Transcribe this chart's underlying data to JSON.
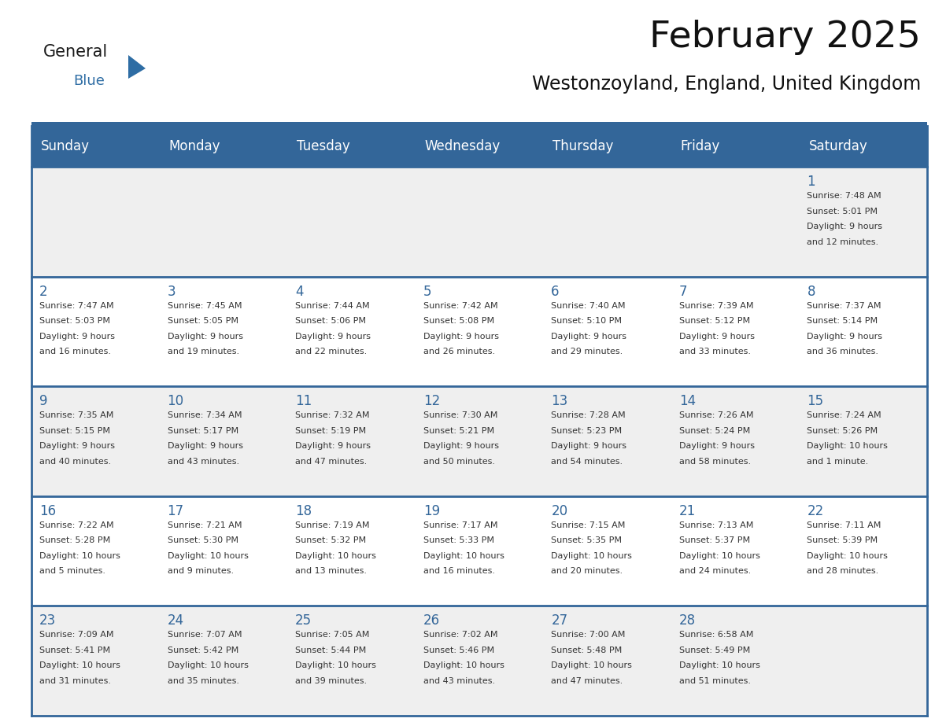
{
  "title": "February 2025",
  "subtitle": "Westonzoyland, England, United Kingdom",
  "days_of_week": [
    "Sunday",
    "Monday",
    "Tuesday",
    "Wednesday",
    "Thursday",
    "Friday",
    "Saturday"
  ],
  "header_bg": "#336699",
  "header_text_color": "#FFFFFF",
  "row_bg_odd": "#EFEFEF",
  "row_bg_even": "#FFFFFF",
  "week_sep_color": "#336699",
  "day_number_color": "#336699",
  "info_text_color": "#333333",
  "title_color": "#111111",
  "subtitle_color": "#111111",
  "logo_general_color": "#1a1a1a",
  "logo_blue_color": "#2E6DA4",
  "calendar": [
    [
      null,
      null,
      null,
      null,
      null,
      null,
      {
        "day": 1,
        "sunrise": "7:48 AM",
        "sunset": "5:01 PM",
        "daylight": "9 hours and 12 minutes."
      }
    ],
    [
      {
        "day": 2,
        "sunrise": "7:47 AM",
        "sunset": "5:03 PM",
        "daylight": "9 hours and 16 minutes."
      },
      {
        "day": 3,
        "sunrise": "7:45 AM",
        "sunset": "5:05 PM",
        "daylight": "9 hours and 19 minutes."
      },
      {
        "day": 4,
        "sunrise": "7:44 AM",
        "sunset": "5:06 PM",
        "daylight": "9 hours and 22 minutes."
      },
      {
        "day": 5,
        "sunrise": "7:42 AM",
        "sunset": "5:08 PM",
        "daylight": "9 hours and 26 minutes."
      },
      {
        "day": 6,
        "sunrise": "7:40 AM",
        "sunset": "5:10 PM",
        "daylight": "9 hours and 29 minutes."
      },
      {
        "day": 7,
        "sunrise": "7:39 AM",
        "sunset": "5:12 PM",
        "daylight": "9 hours and 33 minutes."
      },
      {
        "day": 8,
        "sunrise": "7:37 AM",
        "sunset": "5:14 PM",
        "daylight": "9 hours and 36 minutes."
      }
    ],
    [
      {
        "day": 9,
        "sunrise": "7:35 AM",
        "sunset": "5:15 PM",
        "daylight": "9 hours and 40 minutes."
      },
      {
        "day": 10,
        "sunrise": "7:34 AM",
        "sunset": "5:17 PM",
        "daylight": "9 hours and 43 minutes."
      },
      {
        "day": 11,
        "sunrise": "7:32 AM",
        "sunset": "5:19 PM",
        "daylight": "9 hours and 47 minutes."
      },
      {
        "day": 12,
        "sunrise": "7:30 AM",
        "sunset": "5:21 PM",
        "daylight": "9 hours and 50 minutes."
      },
      {
        "day": 13,
        "sunrise": "7:28 AM",
        "sunset": "5:23 PM",
        "daylight": "9 hours and 54 minutes."
      },
      {
        "day": 14,
        "sunrise": "7:26 AM",
        "sunset": "5:24 PM",
        "daylight": "9 hours and 58 minutes."
      },
      {
        "day": 15,
        "sunrise": "7:24 AM",
        "sunset": "5:26 PM",
        "daylight": "10 hours and 1 minute."
      }
    ],
    [
      {
        "day": 16,
        "sunrise": "7:22 AM",
        "sunset": "5:28 PM",
        "daylight": "10 hours and 5 minutes."
      },
      {
        "day": 17,
        "sunrise": "7:21 AM",
        "sunset": "5:30 PM",
        "daylight": "10 hours and 9 minutes."
      },
      {
        "day": 18,
        "sunrise": "7:19 AM",
        "sunset": "5:32 PM",
        "daylight": "10 hours and 13 minutes."
      },
      {
        "day": 19,
        "sunrise": "7:17 AM",
        "sunset": "5:33 PM",
        "daylight": "10 hours and 16 minutes."
      },
      {
        "day": 20,
        "sunrise": "7:15 AM",
        "sunset": "5:35 PM",
        "daylight": "10 hours and 20 minutes."
      },
      {
        "day": 21,
        "sunrise": "7:13 AM",
        "sunset": "5:37 PM",
        "daylight": "10 hours and 24 minutes."
      },
      {
        "day": 22,
        "sunrise": "7:11 AM",
        "sunset": "5:39 PM",
        "daylight": "10 hours and 28 minutes."
      }
    ],
    [
      {
        "day": 23,
        "sunrise": "7:09 AM",
        "sunset": "5:41 PM",
        "daylight": "10 hours and 31 minutes."
      },
      {
        "day": 24,
        "sunrise": "7:07 AM",
        "sunset": "5:42 PM",
        "daylight": "10 hours and 35 minutes."
      },
      {
        "day": 25,
        "sunrise": "7:05 AM",
        "sunset": "5:44 PM",
        "daylight": "10 hours and 39 minutes."
      },
      {
        "day": 26,
        "sunrise": "7:02 AM",
        "sunset": "5:46 PM",
        "daylight": "10 hours and 43 minutes."
      },
      {
        "day": 27,
        "sunrise": "7:00 AM",
        "sunset": "5:48 PM",
        "daylight": "10 hours and 47 minutes."
      },
      {
        "day": 28,
        "sunrise": "6:58 AM",
        "sunset": "5:49 PM",
        "daylight": "10 hours and 51 minutes."
      },
      null
    ]
  ],
  "figsize": [
    11.88,
    9.18
  ],
  "dpi": 100
}
